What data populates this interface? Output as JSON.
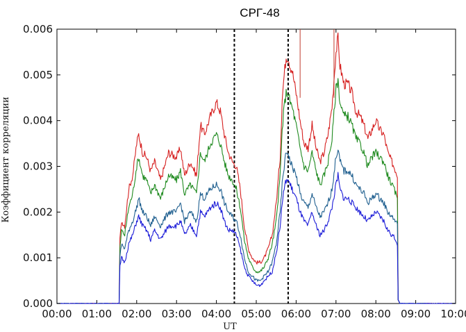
{
  "chart_data": {
    "type": "line",
    "title": "СРГ-48",
    "xlabel": "UT",
    "ylabel": "Коэффициент корреляции",
    "x_ticks": [
      "00:00",
      "01:00",
      "02:00",
      "03:00",
      "04:00",
      "05:00",
      "06:00",
      "07:00",
      "08:00",
      "09:00",
      "10:00"
    ],
    "y_ticks": [
      "0.000",
      "0.001",
      "0.002",
      "0.003",
      "0.004",
      "0.005",
      "0.006"
    ],
    "xlim": [
      0,
      10
    ],
    "ylim": [
      0,
      0.006
    ],
    "grid": false,
    "vlines": [
      4.45,
      5.8
    ],
    "series": [
      {
        "color": "#d62020",
        "x": [
          0,
          1.56,
          1.58,
          1.62,
          1.7,
          1.8,
          1.9,
          2.0,
          2.05,
          2.15,
          2.25,
          2.35,
          2.45,
          2.6,
          2.8,
          3.0,
          3.1,
          3.2,
          3.35,
          3.5,
          3.6,
          3.7,
          3.85,
          4.0,
          4.1,
          4.2,
          4.3,
          4.4,
          4.5,
          4.6,
          4.7,
          4.8,
          4.9,
          5.0,
          5.1,
          5.2,
          5.3,
          5.4,
          5.5,
          5.6,
          5.65,
          5.7,
          5.75,
          5.8,
          5.85,
          5.9,
          6.0,
          6.1,
          6.2,
          6.3,
          6.4,
          6.5,
          6.6,
          6.7,
          6.8,
          6.9,
          7.0,
          7.05,
          7.1,
          7.2,
          7.3,
          7.4,
          7.5,
          7.6,
          7.7,
          7.8,
          7.9,
          8.0,
          8.1,
          8.2,
          8.3,
          8.4,
          8.5,
          8.54,
          8.56,
          8.6,
          10.0
        ],
        "y": [
          0.0,
          0.0,
          0.0014,
          0.0018,
          0.0017,
          0.0025,
          0.0028,
          0.0035,
          0.0037,
          0.0033,
          0.0032,
          0.0029,
          0.0031,
          0.0027,
          0.0033,
          0.0032,
          0.0034,
          0.0028,
          0.0031,
          0.0028,
          0.0039,
          0.0037,
          0.0041,
          0.0044,
          0.0042,
          0.0037,
          0.0033,
          0.0031,
          0.003,
          0.0025,
          0.0017,
          0.0012,
          0.001,
          0.0009,
          0.0009,
          0.001,
          0.0012,
          0.0015,
          0.0022,
          0.0032,
          0.0045,
          0.005,
          0.0054,
          0.0054,
          0.0052,
          0.0051,
          0.0046,
          0.004,
          0.0035,
          0.0034,
          0.0039,
          0.0034,
          0.0031,
          0.0033,
          0.0037,
          0.0043,
          0.0055,
          0.0058,
          0.0052,
          0.0048,
          0.0048,
          0.0046,
          0.0042,
          0.0041,
          0.0039,
          0.0036,
          0.0038,
          0.004,
          0.0038,
          0.0037,
          0.0033,
          0.0031,
          0.0029,
          0.0028,
          0.0001,
          0.0,
          0.0
        ]
      },
      {
        "color": "#1e8a1e",
        "x": [
          0,
          1.56,
          1.58,
          1.62,
          1.7,
          1.8,
          1.9,
          2.0,
          2.05,
          2.15,
          2.25,
          2.35,
          2.45,
          2.6,
          2.8,
          3.0,
          3.1,
          3.2,
          3.35,
          3.5,
          3.6,
          3.7,
          3.85,
          4.0,
          4.1,
          4.2,
          4.3,
          4.4,
          4.5,
          4.6,
          4.7,
          4.8,
          4.9,
          5.0,
          5.1,
          5.2,
          5.3,
          5.4,
          5.5,
          5.6,
          5.65,
          5.7,
          5.75,
          5.8,
          5.85,
          5.9,
          6.0,
          6.1,
          6.2,
          6.3,
          6.4,
          6.5,
          6.6,
          6.7,
          6.8,
          6.9,
          7.0,
          7.05,
          7.1,
          7.2,
          7.3,
          7.4,
          7.5,
          7.6,
          7.7,
          7.8,
          7.9,
          8.0,
          8.1,
          8.2,
          8.3,
          8.4,
          8.5,
          8.54,
          8.56,
          8.6,
          10.0
        ],
        "y": [
          0.0,
          0.0,
          0.0012,
          0.0016,
          0.0015,
          0.0021,
          0.0024,
          0.003,
          0.0032,
          0.0028,
          0.0027,
          0.0024,
          0.0026,
          0.0023,
          0.0028,
          0.0027,
          0.0029,
          0.0024,
          0.0026,
          0.0024,
          0.0033,
          0.0031,
          0.0035,
          0.0037,
          0.0035,
          0.0031,
          0.0028,
          0.0027,
          0.0025,
          0.0021,
          0.0014,
          0.001,
          0.0008,
          0.0007,
          0.0007,
          0.0008,
          0.001,
          0.0013,
          0.0018,
          0.0028,
          0.0038,
          0.0043,
          0.0046,
          0.0046,
          0.0044,
          0.0043,
          0.0039,
          0.0034,
          0.003,
          0.0029,
          0.0033,
          0.0029,
          0.0026,
          0.0028,
          0.0031,
          0.0036,
          0.0047,
          0.0049,
          0.0044,
          0.0041,
          0.0041,
          0.0039,
          0.0036,
          0.0035,
          0.0033,
          0.003,
          0.0032,
          0.0033,
          0.0032,
          0.0031,
          0.0028,
          0.0026,
          0.0024,
          0.0023,
          0.0001,
          0.0,
          0.0
        ]
      },
      {
        "color": "#1f5f8f",
        "x": [
          0,
          1.56,
          1.58,
          1.62,
          1.7,
          1.8,
          1.9,
          2.0,
          2.05,
          2.15,
          2.25,
          2.35,
          2.45,
          2.6,
          2.8,
          3.0,
          3.1,
          3.2,
          3.35,
          3.5,
          3.6,
          3.7,
          3.85,
          4.0,
          4.1,
          4.2,
          4.3,
          4.4,
          4.5,
          4.6,
          4.7,
          4.8,
          4.9,
          5.0,
          5.1,
          5.2,
          5.3,
          5.4,
          5.5,
          5.6,
          5.65,
          5.7,
          5.75,
          5.8,
          5.85,
          5.9,
          6.0,
          6.1,
          6.2,
          6.3,
          6.4,
          6.5,
          6.6,
          6.7,
          6.8,
          6.9,
          7.0,
          7.05,
          7.1,
          7.2,
          7.3,
          7.4,
          7.5,
          7.6,
          7.7,
          7.8,
          7.9,
          8.0,
          8.1,
          8.2,
          8.3,
          8.4,
          8.5,
          8.54,
          8.56,
          8.6,
          10.0
        ],
        "y": [
          0.0,
          0.0,
          0.001,
          0.0013,
          0.0012,
          0.0016,
          0.0018,
          0.0021,
          0.0023,
          0.002,
          0.0019,
          0.0017,
          0.0019,
          0.0017,
          0.002,
          0.002,
          0.0022,
          0.0018,
          0.002,
          0.0018,
          0.0024,
          0.0023,
          0.0025,
          0.0026,
          0.0025,
          0.0022,
          0.002,
          0.0019,
          0.0018,
          0.0015,
          0.001,
          0.0007,
          0.0006,
          0.0005,
          0.0005,
          0.0006,
          0.0007,
          0.0009,
          0.0013,
          0.002,
          0.0026,
          0.003,
          0.0033,
          0.0033,
          0.0031,
          0.003,
          0.0028,
          0.0024,
          0.0022,
          0.0021,
          0.0024,
          0.0021,
          0.0019,
          0.002,
          0.0022,
          0.0025,
          0.0032,
          0.0034,
          0.0031,
          0.0029,
          0.0029,
          0.0028,
          0.0026,
          0.0025,
          0.0024,
          0.0022,
          0.0023,
          0.0024,
          0.0023,
          0.0022,
          0.002,
          0.0019,
          0.0018,
          0.0017,
          0.0001,
          0.0,
          0.0
        ]
      },
      {
        "color": "#1b1bd8",
        "x": [
          0,
          1.56,
          1.58,
          1.62,
          1.7,
          1.8,
          1.9,
          2.0,
          2.05,
          2.15,
          2.25,
          2.35,
          2.45,
          2.6,
          2.8,
          3.0,
          3.1,
          3.2,
          3.35,
          3.5,
          3.6,
          3.7,
          3.85,
          4.0,
          4.1,
          4.2,
          4.3,
          4.4,
          4.5,
          4.6,
          4.7,
          4.8,
          4.9,
          5.0,
          5.1,
          5.2,
          5.3,
          5.4,
          5.5,
          5.6,
          5.65,
          5.7,
          5.75,
          5.8,
          5.85,
          5.9,
          6.0,
          6.1,
          6.2,
          6.3,
          6.4,
          6.5,
          6.6,
          6.7,
          6.8,
          6.9,
          7.0,
          7.05,
          7.1,
          7.2,
          7.3,
          7.4,
          7.5,
          7.6,
          7.7,
          7.8,
          7.9,
          8.0,
          8.1,
          8.2,
          8.3,
          8.4,
          8.5,
          8.54,
          8.56,
          8.6,
          10.0
        ],
        "y": [
          0.0,
          0.0,
          0.0008,
          0.001,
          0.0009,
          0.0013,
          0.0015,
          0.0018,
          0.0019,
          0.0017,
          0.0016,
          0.0014,
          0.0016,
          0.0014,
          0.0017,
          0.0017,
          0.0018,
          0.0015,
          0.0017,
          0.0015,
          0.002,
          0.0019,
          0.0021,
          0.0022,
          0.0021,
          0.0018,
          0.0016,
          0.0016,
          0.0015,
          0.0012,
          0.0008,
          0.0006,
          0.0005,
          0.0004,
          0.0004,
          0.0005,
          0.0006,
          0.0007,
          0.0011,
          0.0017,
          0.0022,
          0.0025,
          0.0027,
          0.0027,
          0.0026,
          0.0025,
          0.0023,
          0.002,
          0.0018,
          0.0017,
          0.002,
          0.0017,
          0.0015,
          0.0016,
          0.0018,
          0.0021,
          0.0026,
          0.0028,
          0.0025,
          0.0023,
          0.0023,
          0.0022,
          0.0021,
          0.002,
          0.0019,
          0.0018,
          0.0019,
          0.002,
          0.0019,
          0.0018,
          0.0016,
          0.0015,
          0.0014,
          0.0013,
          0.0001,
          0.0,
          0.0
        ]
      }
    ]
  }
}
